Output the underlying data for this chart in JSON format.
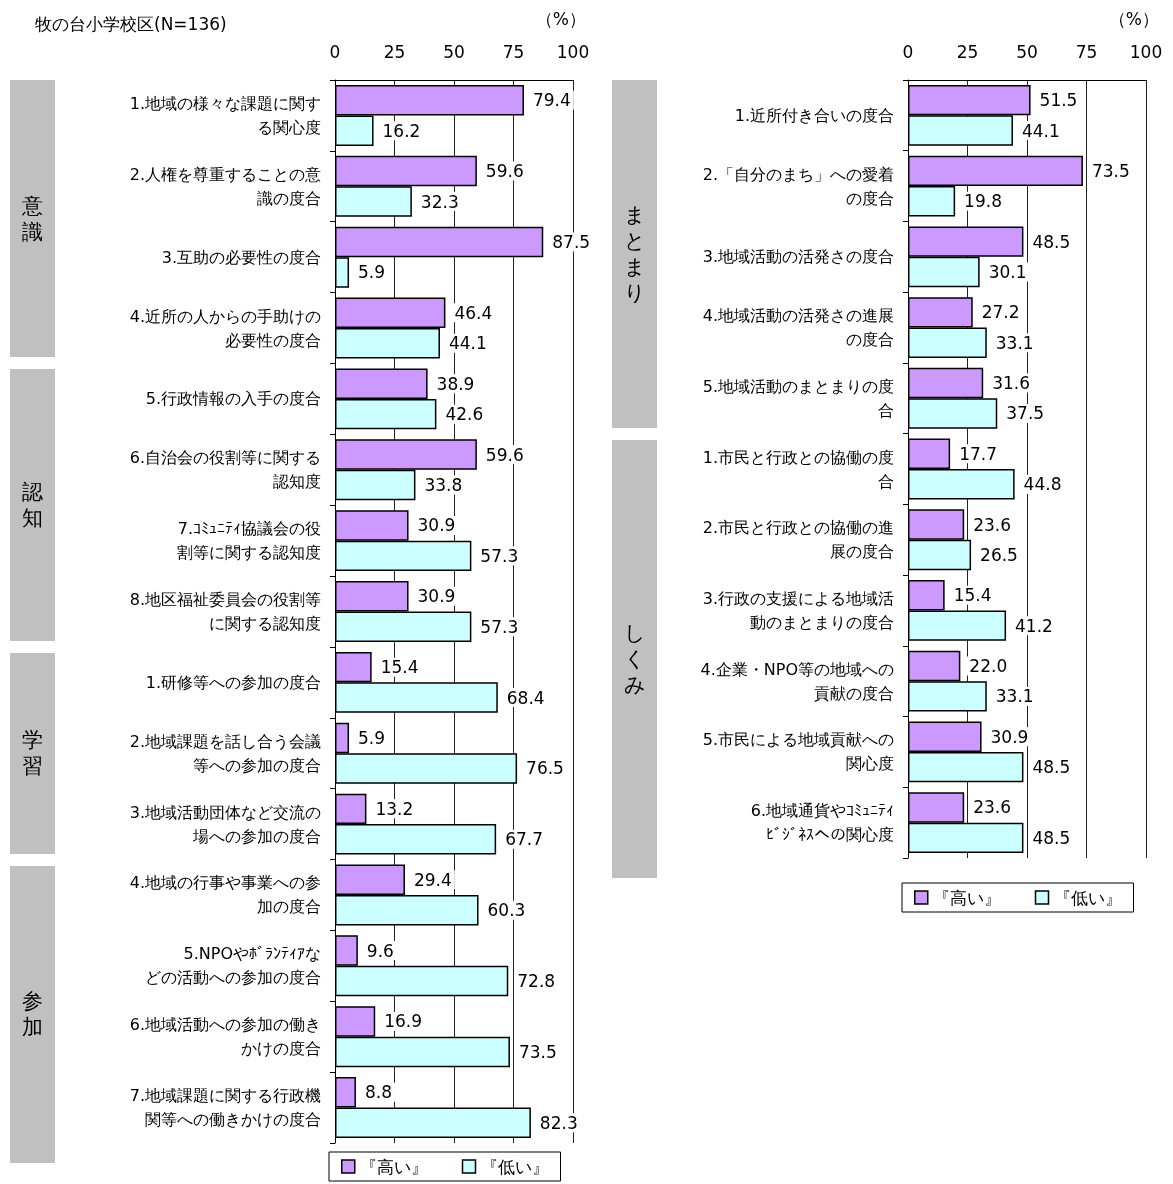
{
  "chart_data": [
    {
      "type": "bar",
      "orientation": "horizontal",
      "title": "牧の台小学校区(N=136)",
      "xlabel": "（%）",
      "categories": [
        "1.地域の様々な課題に関する関心度",
        "2.人権を尊重することの意識の度合",
        "3.互助の必要性の度合",
        "4.近所の人からの手助けの必要性の度合",
        "5.行政情報の入手の度合",
        "6.自治会の役割等に関する認知度",
        "7.ｺﾐｭﾆﾃｨ協議会の役割等に関する認知度",
        "8.地区福祉委員会の役割等に関する認知度",
        "1.研修等への参加の度合",
        "2.地域課題を話し合う会議等への参加の度合",
        "3.地域活動団体など交流の場への参加の度合",
        "4.地域の行事や事業への参加の度合",
        "5.NPOやﾎﾞﾗﾝﾃｨｱなどの活動への参加の度合",
        "6.地域活動への参加の働きかけの度合",
        "7.地域課題に関する行政機関等への働きかけの度合"
      ],
      "series": [
        {
          "name": "『高い』",
          "color": "#cc99ff",
          "values": [
            79.4,
            59.6,
            87.5,
            46.4,
            38.9,
            59.6,
            30.9,
            30.9,
            15.4,
            5.9,
            13.2,
            29.4,
            9.6,
            16.9,
            8.8
          ],
          "value_labels": [
            "79.4",
            "59.6",
            "87.5",
            "46.4",
            "38.9",
            "59.6",
            "30.9",
            "30.9",
            "15.4",
            "5.9",
            "13.2",
            "29.4",
            "9.6",
            "16.9",
            "8.8"
          ]
        },
        {
          "name": "『低い』",
          "color": "#ccffff",
          "values": [
            16.2,
            32.3,
            5.9,
            44.1,
            42.6,
            33.8,
            57.3,
            57.3,
            68.4,
            76.5,
            67.7,
            60.3,
            72.8,
            73.5,
            82.3
          ],
          "value_labels": [
            "16.2",
            "32.3",
            "5.9",
            "44.1",
            "42.6",
            "33.8",
            "57.3",
            "57.3",
            "68.4",
            "76.5",
            "67.7",
            "60.3",
            "72.8",
            "73.5",
            "82.3"
          ]
        }
      ],
      "xlim": [
        0,
        100
      ],
      "xticks": [
        0,
        25,
        50,
        75,
        100
      ],
      "grid": "x",
      "legend": "bottom",
      "annotations": [
        "意識",
        "認知",
        "学習",
        "参加"
      ]
    },
    {
      "type": "bar",
      "orientation": "horizontal",
      "xlabel": "（%）",
      "categories": [
        "1.近所付き合いの度合",
        "2.「自分のまち」への愛着の度合",
        "3.地域活動の活発さの度合",
        "4.地域活動の活発さの進展の度合",
        "5.地域活動のまとまりの度合",
        "1.市民と行政との協働の度合",
        "2.市民と行政との協働の進展の度合",
        "3.行政の支援による地域活動のまとまりの度合",
        "4.企業・NPO等の地域への貢献の度合",
        "5.市民による地域貢献への関心度",
        "6.地域通貨やｺﾐｭﾆﾃｨﾋﾞｼﾞﾈｽへの関心度"
      ],
      "series": [
        {
          "name": "『高い』",
          "color": "#cc99ff",
          "values": [
            51.5,
            73.5,
            48.5,
            27.2,
            31.6,
            17.7,
            23.6,
            15.4,
            22.0,
            30.9,
            23.6
          ],
          "value_labels": [
            "51.5",
            "73.5",
            "48.5",
            "27.2",
            "31.6",
            "17.7",
            "23.6",
            "15.4",
            "22.0",
            "30.9",
            "23.6"
          ]
        },
        {
          "name": "『低い』",
          "color": "#ccffff",
          "values": [
            44.1,
            19.8,
            30.1,
            33.1,
            37.5,
            44.8,
            26.5,
            41.2,
            33.1,
            48.5,
            48.5
          ],
          "value_labels": [
            "44.1",
            "19.8",
            "30.1",
            "33.1",
            "37.5",
            "44.8",
            "26.5",
            "41.2",
            "33.1",
            "48.5",
            "48.5"
          ]
        }
      ],
      "xlim": [
        0,
        100
      ],
      "xticks": [
        0,
        25,
        50,
        75,
        100
      ],
      "grid": "x",
      "legend": "bottom",
      "annotations": [
        "まとまり",
        "しくみ"
      ]
    }
  ]
}
